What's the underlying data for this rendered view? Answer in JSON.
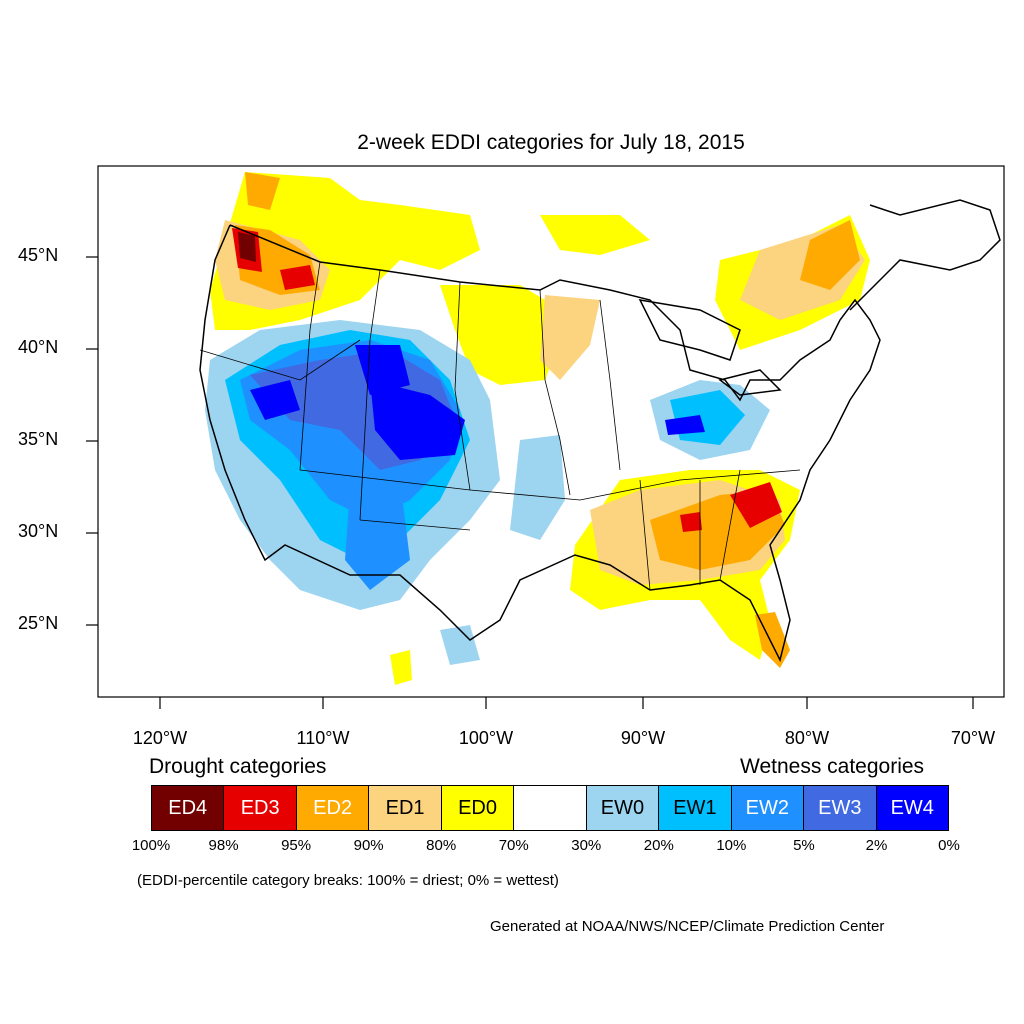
{
  "title": "2-week EDDI categories for July 18, 2015",
  "lat_labels": [
    "45°N",
    "40°N",
    "35°N",
    "30°N",
    "25°N"
  ],
  "lon_labels": [
    "120°W",
    "110°W",
    "100°W",
    "90°W",
    "80°W",
    "70°W"
  ],
  "legend": {
    "drought_heading": "Drought categories",
    "wetness_heading": "Wetness categories",
    "categories": [
      {
        "label": "ED4",
        "color": "#730000",
        "text_color": "#ffffff"
      },
      {
        "label": "ED3",
        "color": "#e60000",
        "text_color": "#ffffff"
      },
      {
        "label": "ED2",
        "color": "#ffaa00",
        "text_color": "#ffffff"
      },
      {
        "label": "ED1",
        "color": "#fcd37f",
        "text_color": "#000000"
      },
      {
        "label": "ED0",
        "color": "#ffff00",
        "text_color": "#000000"
      },
      {
        "label": "",
        "color": "#ffffff",
        "text_color": "#000000"
      },
      {
        "label": "EW0",
        "color": "#9dd4f0",
        "text_color": "#000000"
      },
      {
        "label": "EW1",
        "color": "#00bfff",
        "text_color": "#000000"
      },
      {
        "label": "EW2",
        "color": "#1e90ff",
        "text_color": "#ffffff"
      },
      {
        "label": "EW3",
        "color": "#4169e1",
        "text_color": "#ffffff"
      },
      {
        "label": "EW4",
        "color": "#0000ff",
        "text_color": "#ffffff"
      }
    ],
    "percentiles": [
      "100%",
      "98%",
      "95%",
      "90%",
      "80%",
      "70%",
      "30%",
      "20%",
      "10%",
      "5%",
      "2%",
      "0%"
    ]
  },
  "note": "(EDDI-percentile category breaks: 100% = driest; 0% = wettest)",
  "credit": "Generated at NOAA/NWS/NCEP/Climate Prediction Center"
}
